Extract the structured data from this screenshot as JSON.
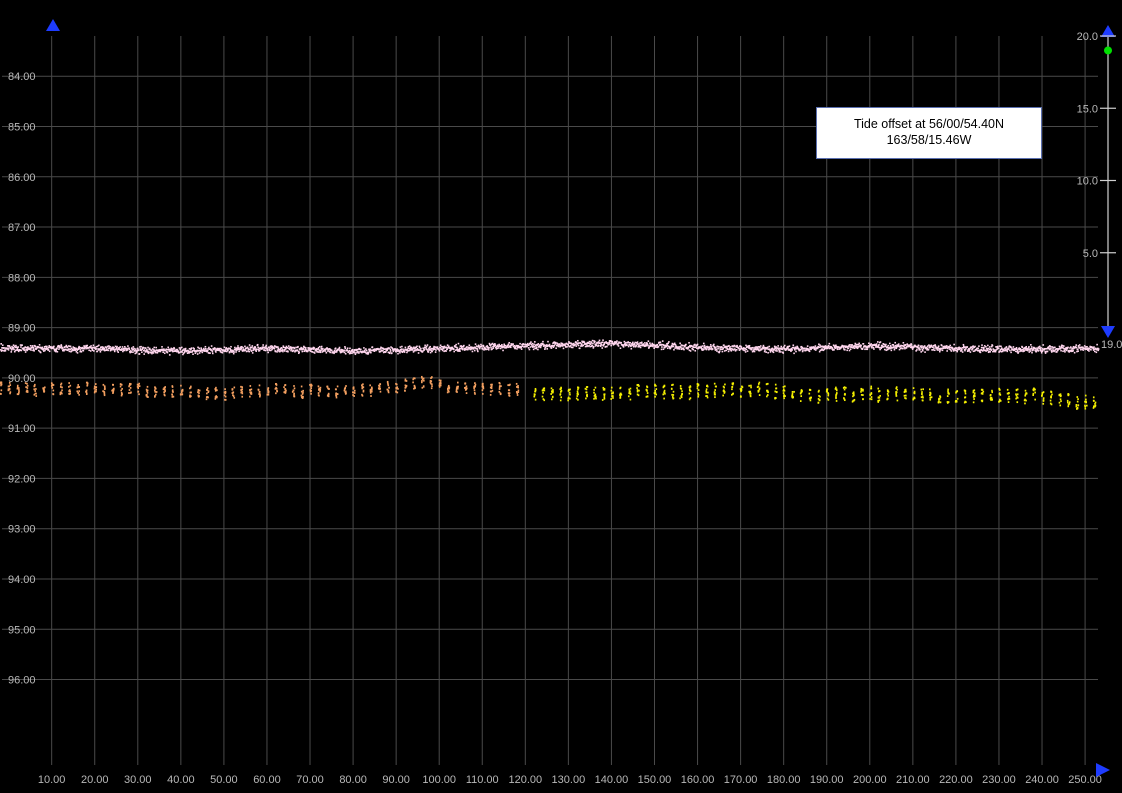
{
  "tooltip": {
    "line1": "Tide offset at 56/00/54.40N",
    "line2": "163/58/15.46W"
  },
  "colors": {
    "background": "#000000",
    "grid": "#4a4a4a",
    "axis_arrow": "#1e3cff",
    "series_reference": "#ffd6ee",
    "series_line1": "#f4a060",
    "series_line2": "#f5f000",
    "slider_handle": "#00e000"
  },
  "icons": {
    "left_axis_arrow": "triangle-up-icon",
    "bottom_axis_arrow": "triangle-right-icon",
    "slider_top_arrow": "triangle-up-icon",
    "slider_bottom_arrow": "triangle-down-icon",
    "slider_handle": "circle-icon"
  },
  "depth_slider": {
    "ticks": [
      "20.0",
      "15.0",
      "10.0",
      "5.0"
    ],
    "tick_values": [
      20,
      15,
      10,
      5
    ],
    "min": 0,
    "max": 20,
    "value": 19,
    "value_label": "19.0"
  },
  "chart_data": {
    "type": "scatter",
    "x_ticks": [
      "10.00",
      "20.00",
      "30.00",
      "40.00",
      "50.00",
      "60.00",
      "70.00",
      "80.00",
      "90.00",
      "100.00",
      "110.00",
      "120.00",
      "130.00",
      "140.00",
      "150.00",
      "160.00",
      "170.00",
      "180.00",
      "190.00",
      "200.00",
      "210.00",
      "220.00",
      "230.00",
      "240.00",
      "250.00"
    ],
    "y_ticks": [
      "84.00",
      "85.00",
      "86.00",
      "87.00",
      "88.00",
      "89.00",
      "90.00",
      "91.00",
      "92.00",
      "93.00",
      "94.00",
      "95.00",
      "96.00"
    ],
    "xlim": [
      -2,
      253
    ],
    "ylim": [
      83.2,
      97.7
    ],
    "y_inverted": true,
    "grid": true,
    "series": [
      {
        "color": "#ffd6ee",
        "x_range": [
          -2,
          253
        ],
        "profile_x": [
          0,
          20,
          40,
          60,
          80,
          100,
          120,
          140,
          160,
          180,
          200,
          220,
          240,
          253
        ],
        "profile_y": [
          89.4,
          89.4,
          89.45,
          89.4,
          89.45,
          89.4,
          89.35,
          89.3,
          89.38,
          89.42,
          89.35,
          89.4,
          89.42,
          89.4
        ],
        "spread": 0.1
      },
      {
        "color": "#f4a060",
        "x_range": [
          -2,
          119
        ],
        "profile_x": [
          0,
          20,
          40,
          50,
          60,
          70,
          80,
          90,
          96,
          105,
          119
        ],
        "profile_y": [
          90.2,
          90.2,
          90.25,
          90.3,
          90.2,
          90.25,
          90.25,
          90.15,
          90.05,
          90.2,
          90.2
        ],
        "spread": 0.12
      },
      {
        "color": "#f5f000",
        "x_range": [
          122,
          253
        ],
        "profile_x": [
          122,
          140,
          160,
          175,
          185,
          200,
          220,
          240,
          253
        ],
        "profile_y": [
          90.3,
          90.3,
          90.25,
          90.2,
          90.35,
          90.3,
          90.35,
          90.35,
          90.5
        ],
        "spread": 0.14
      }
    ]
  }
}
